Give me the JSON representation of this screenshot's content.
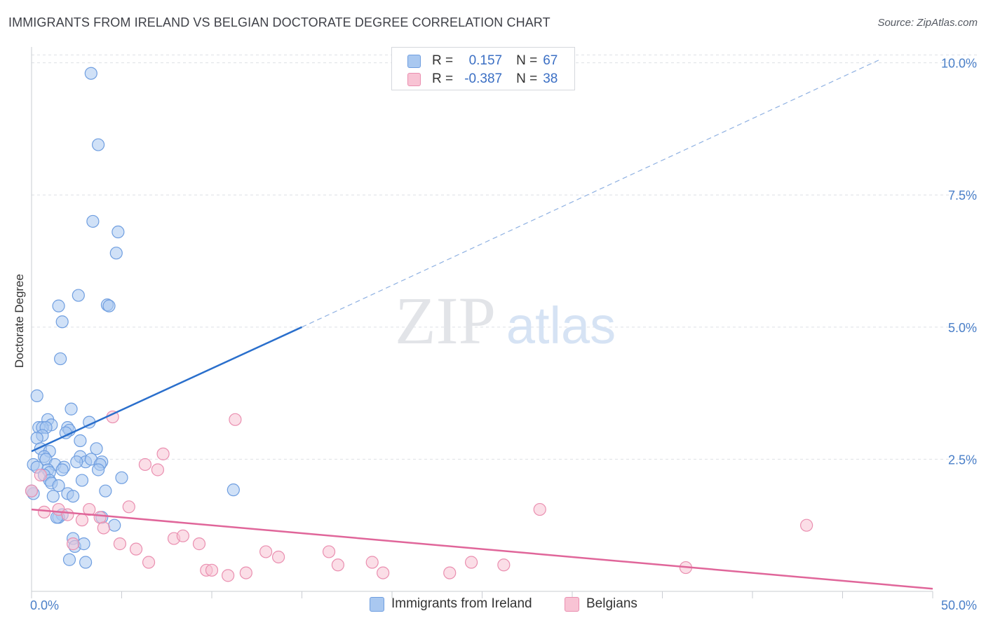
{
  "title": "IMMIGRANTS FROM IRELAND VS BELGIAN DOCTORATE DEGREE CORRELATION CHART",
  "source": "Source: ZipAtlas.com",
  "watermark": {
    "zip": "ZIP",
    "atlas": "atlas"
  },
  "legend": {
    "r_label": "R =",
    "n_label": "N =",
    "series": [
      {
        "name": "Immigrants from Ireland",
        "r": "0.157",
        "n": "67",
        "fill": "#a9c8f0",
        "stroke": "#6f9ee0"
      },
      {
        "name": "Belgians",
        "r": "-0.387",
        "n": "38",
        "fill": "#f8c3d4",
        "stroke": "#ea8fb0"
      }
    ]
  },
  "chart_data": {
    "type": "scatter",
    "title": "IMMIGRANTS FROM IRELAND VS BELGIAN DOCTORATE DEGREE CORRELATION CHART",
    "xlabel": "",
    "ylabel": "Doctorate Degree",
    "xlim": [
      0,
      50
    ],
    "ylim": [
      0,
      10.3
    ],
    "x_tick_labels": [
      "0.0%",
      "50.0%"
    ],
    "y_ticks": [
      2.5,
      5.0,
      7.5,
      10.0
    ],
    "y_tick_labels": [
      "2.5%",
      "5.0%",
      "7.5%",
      "10.0%"
    ],
    "grid": true,
    "series": [
      {
        "name": "Immigrants from Ireland",
        "color": "#6f9ee0",
        "trend": {
          "x0": 0,
          "y0": 2.65,
          "x1": 15,
          "y1": 5.0,
          "dashed_to_x": 47,
          "dashed_to_y": 10.05,
          "color": "#2a6fcc"
        },
        "points": [
          [
            3.3,
            9.8
          ],
          [
            3.7,
            8.45
          ],
          [
            3.4,
            7.0
          ],
          [
            4.8,
            6.8
          ],
          [
            4.7,
            6.4
          ],
          [
            2.6,
            5.6
          ],
          [
            1.5,
            5.4
          ],
          [
            4.2,
            5.42
          ],
          [
            4.3,
            5.4
          ],
          [
            1.7,
            5.1
          ],
          [
            1.6,
            4.4
          ],
          [
            0.3,
            3.7
          ],
          [
            2.2,
            3.45
          ],
          [
            0.9,
            3.25
          ],
          [
            1.1,
            3.15
          ],
          [
            0.4,
            3.1
          ],
          [
            0.6,
            3.1
          ],
          [
            0.8,
            3.1
          ],
          [
            2.0,
            3.1
          ],
          [
            3.2,
            3.2
          ],
          [
            2.1,
            3.05
          ],
          [
            0.6,
            2.95
          ],
          [
            0.3,
            2.9
          ],
          [
            1.9,
            3.0
          ],
          [
            2.7,
            2.85
          ],
          [
            3.6,
            2.7
          ],
          [
            0.5,
            2.7
          ],
          [
            1.0,
            2.65
          ],
          [
            0.7,
            2.55
          ],
          [
            0.8,
            2.5
          ],
          [
            2.7,
            2.55
          ],
          [
            3.0,
            2.45
          ],
          [
            3.9,
            2.45
          ],
          [
            3.3,
            2.5
          ],
          [
            3.8,
            2.4
          ],
          [
            1.3,
            2.4
          ],
          [
            2.5,
            2.45
          ],
          [
            0.1,
            2.4
          ],
          [
            1.8,
            2.35
          ],
          [
            0.3,
            2.35
          ],
          [
            0.9,
            2.3
          ],
          [
            1.7,
            2.3
          ],
          [
            3.7,
            2.3
          ],
          [
            1.0,
            2.25
          ],
          [
            0.7,
            2.2
          ],
          [
            5.0,
            2.15
          ],
          [
            2.8,
            2.1
          ],
          [
            1.0,
            2.1
          ],
          [
            1.1,
            2.05
          ],
          [
            1.5,
            2.0
          ],
          [
            4.1,
            1.9
          ],
          [
            11.2,
            1.92
          ],
          [
            2.0,
            1.85
          ],
          [
            1.2,
            1.8
          ],
          [
            2.3,
            1.8
          ],
          [
            0.1,
            1.85
          ],
          [
            1.7,
            1.45
          ],
          [
            1.5,
            1.4
          ],
          [
            3.9,
            1.4
          ],
          [
            4.6,
            1.25
          ],
          [
            2.3,
            1.0
          ],
          [
            2.4,
            0.85
          ],
          [
            2.9,
            0.9
          ],
          [
            2.1,
            0.6
          ],
          [
            3.0,
            0.55
          ],
          [
            0.0,
            1.9
          ],
          [
            1.4,
            1.4
          ]
        ]
      },
      {
        "name": "Belgians",
        "color": "#ea8fb0",
        "trend": {
          "x0": 0,
          "y0": 1.55,
          "x1": 50,
          "y1": 0.05,
          "color": "#e0669a"
        },
        "points": [
          [
            0.0,
            1.9
          ],
          [
            4.5,
            3.3
          ],
          [
            11.3,
            3.25
          ],
          [
            7.3,
            2.6
          ],
          [
            6.3,
            2.4
          ],
          [
            7.0,
            2.3
          ],
          [
            0.7,
            1.5
          ],
          [
            1.5,
            1.55
          ],
          [
            2.0,
            1.45
          ],
          [
            3.2,
            1.55
          ],
          [
            3.8,
            1.4
          ],
          [
            2.8,
            1.35
          ],
          [
            5.4,
            1.6
          ],
          [
            4.0,
            1.2
          ],
          [
            28.2,
            1.55
          ],
          [
            43.0,
            1.25
          ],
          [
            4.9,
            0.9
          ],
          [
            5.8,
            0.8
          ],
          [
            2.3,
            0.9
          ],
          [
            7.9,
            1.0
          ],
          [
            8.4,
            1.05
          ],
          [
            9.3,
            0.9
          ],
          [
            13.0,
            0.75
          ],
          [
            13.7,
            0.65
          ],
          [
            16.5,
            0.75
          ],
          [
            6.5,
            0.55
          ],
          [
            9.7,
            0.4
          ],
          [
            10.0,
            0.4
          ],
          [
            10.9,
            0.3
          ],
          [
            11.9,
            0.35
          ],
          [
            17.0,
            0.5
          ],
          [
            18.9,
            0.55
          ],
          [
            19.5,
            0.35
          ],
          [
            23.2,
            0.35
          ],
          [
            24.4,
            0.55
          ],
          [
            26.2,
            0.5
          ],
          [
            36.3,
            0.45
          ],
          [
            0.5,
            2.2
          ]
        ]
      }
    ]
  }
}
